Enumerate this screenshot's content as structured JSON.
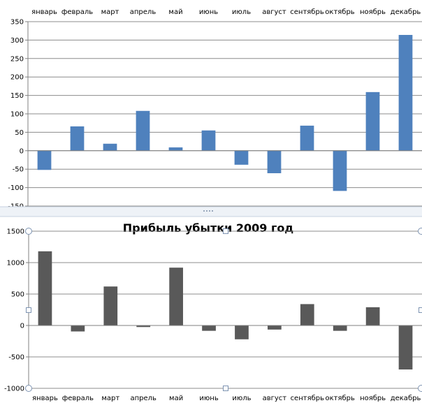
{
  "chart_data": [
    {
      "type": "bar",
      "title": "",
      "xlabel": "",
      "ylabel": "",
      "categories": [
        "январь",
        "февраль",
        "март",
        "апрель",
        "май",
        "июнь",
        "июль",
        "август",
        "сентябрь",
        "октябрь",
        "ноябрь",
        "декабрь"
      ],
      "values": [
        -52,
        66,
        19,
        108,
        9,
        55,
        -38,
        -61,
        68,
        -109,
        159,
        314
      ],
      "ylim": [
        -150,
        350
      ],
      "yticks": [
        -150,
        -100,
        -50,
        0,
        50,
        100,
        150,
        200,
        250,
        300,
        350
      ],
      "grid": true,
      "legend": "none",
      "category_labels_position": "top",
      "bar_color": "#4f81bd"
    },
    {
      "type": "bar",
      "title": "Прибыль убытки 2009 год",
      "xlabel": "",
      "ylabel": "",
      "categories": [
        "январь",
        "февраль",
        "март",
        "апрель",
        "май",
        "июнь",
        "июль",
        "август",
        "сентябрь",
        "октябрь",
        "ноябрь",
        "декабрь"
      ],
      "values": [
        1180,
        -95,
        620,
        -25,
        920,
        -85,
        -220,
        -65,
        340,
        -85,
        290,
        -700
      ],
      "ylim": [
        -1000,
        1500
      ],
      "yticks": [
        -1000,
        -500,
        0,
        500,
        1000,
        1500
      ],
      "grid": true,
      "legend": "none",
      "category_labels_position": "bottom",
      "bar_color": "#595959"
    }
  ]
}
